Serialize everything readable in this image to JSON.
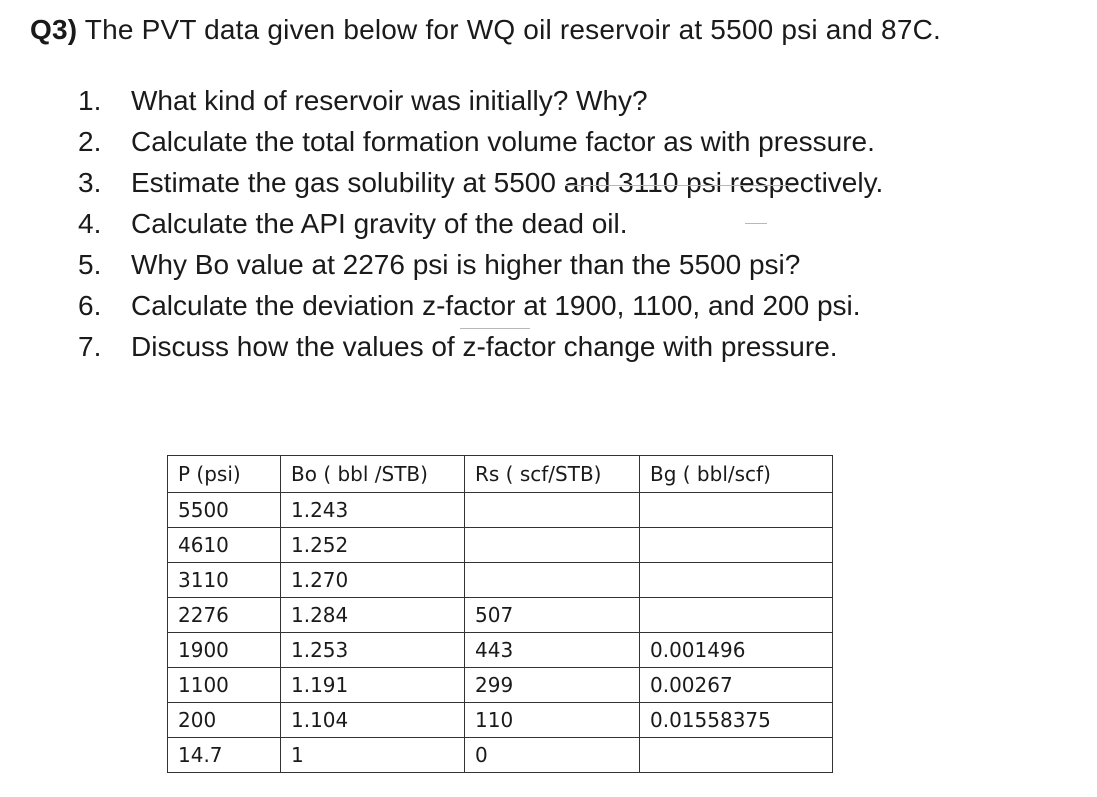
{
  "question": {
    "number": "Q3)",
    "text": "The PVT data given below for WQ oil reservoir at 5500 psi and 87C."
  },
  "items": [
    {
      "num": "1.",
      "text": "What kind of reservoir was initially? Why?"
    },
    {
      "num": "2.",
      "text": "Calculate the total formation volume factor as with pressure."
    },
    {
      "num": "3.",
      "text": "Estimate the gas solubility at 5500 and 3110 psi respectively."
    },
    {
      "num": "4.",
      "text": "Calculate the API gravity of the dead oil."
    },
    {
      "num": "5.",
      "text": "Why Bo value at 2276 psi is higher than the 5500 psi?"
    },
    {
      "num": "6.",
      "text": "Calculate the deviation z-factor at 1900, 1100, and 200 psi."
    },
    {
      "num": "7.",
      "text": "Discuss how the values of z-factor change with pressure."
    }
  ],
  "table": {
    "headers": [
      "P (psi)",
      "Bo ( bbl /STB)",
      "Rs ( scf/STB)",
      "Bg ( bbl/scf)"
    ],
    "rows": [
      [
        "5500",
        "1.243",
        "",
        ""
      ],
      [
        "4610",
        "1.252",
        "",
        ""
      ],
      [
        "3110",
        "1.270",
        "",
        ""
      ],
      [
        "2276",
        "1.284",
        "507",
        ""
      ],
      [
        "1900",
        "1.253",
        "443",
        "0.001496"
      ],
      [
        "1100",
        "1.191",
        "299",
        "0.00267"
      ],
      [
        "200",
        "1.104",
        "110",
        "0.01558375"
      ],
      [
        "14.7",
        "1",
        "0",
        ""
      ]
    ]
  }
}
